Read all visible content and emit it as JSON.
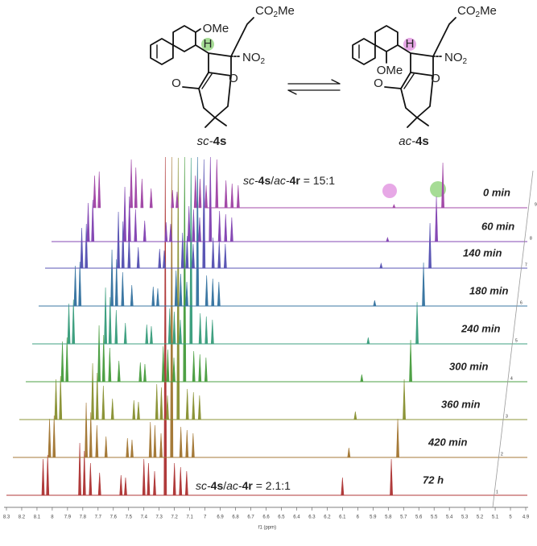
{
  "scheme": {
    "left": {
      "ome": "OMe",
      "h": "H",
      "no2": "NO",
      "no2_sub": "2",
      "co2me_a": "CO",
      "co2me_sub": "2",
      "co2me_b": "Me",
      "ring_o": "O",
      "keto_o": "O",
      "label_prefix": "sc-",
      "label_num": "4s"
    },
    "right": {
      "ome": "OMe",
      "h": "H",
      "no2": "NO",
      "no2_sub": "2",
      "co2me_a": "CO",
      "co2me_sub": "2",
      "co2me_b": "Me",
      "ring_o": "O",
      "keto_o": "O",
      "label_prefix": "ac-",
      "label_num": "4s"
    }
  },
  "annotations": {
    "top_ratio": [
      "sc-",
      "4s",
      "/",
      "ac-",
      "4r",
      " = 15:1"
    ],
    "bottom_ratio": [
      "sc-",
      "4s",
      "/",
      "ac-",
      "4r",
      " = 2.1:1"
    ]
  },
  "chart_data": {
    "type": "nmr-stack",
    "xlabel": "f1 (ppm)",
    "xlim": [
      8.3,
      4.9
    ],
    "xticks": [
      8.3,
      8.2,
      8.1,
      8,
      7.9,
      7.8,
      7.7,
      7.6,
      7.5,
      7.4,
      7.3,
      7.2,
      7.1,
      7,
      6.9,
      6.8,
      6.7,
      6.6,
      6.5,
      6.4,
      6.3,
      6.2,
      6.1,
      6,
      5.9,
      5.8,
      5.7,
      5.6,
      5.5,
      5.4,
      5.3,
      5.2,
      5.1,
      5,
      4.9
    ],
    "traces": [
      {
        "name": "72 h",
        "index": 1,
        "color": "#b03a3a",
        "ppm": [
          8.06,
          8.03,
          7.82,
          7.79,
          7.75,
          7.69,
          7.55,
          7.52,
          7.4,
          7.37,
          7.33,
          7.26,
          7.2,
          7.16,
          7.12,
          6.1,
          5.78
        ],
        "heights": [
          45,
          50,
          65,
          55,
          40,
          28,
          25,
          22,
          45,
          40,
          30,
          420,
          40,
          35,
          30,
          22,
          45
        ]
      },
      {
        "name": "420 min",
        "index": 2,
        "color": "#a57a38",
        "ppm": [
          8.06,
          8.03,
          7.82,
          7.79,
          7.75,
          7.69,
          7.55,
          7.52,
          7.4,
          7.37,
          7.33,
          7.26,
          7.2,
          7.16,
          7.12,
          6.1,
          5.78
        ],
        "heights": [
          48,
          52,
          68,
          56,
          40,
          26,
          24,
          22,
          44,
          40,
          30,
          373,
          38,
          34,
          30,
          12,
          48
        ]
      },
      {
        "name": "360 min",
        "index": 3,
        "color": "#8c9438",
        "ppm": [
          8.06,
          8.03,
          7.82,
          7.79,
          7.75,
          7.69,
          7.55,
          7.52,
          7.4,
          7.37,
          7.33,
          7.26,
          7.2,
          7.16,
          7.12,
          6.1,
          5.78
        ],
        "heights": [
          50,
          54,
          70,
          58,
          42,
          26,
          24,
          22,
          44,
          40,
          30,
          325,
          38,
          34,
          30,
          10,
          50
        ]
      },
      {
        "name": "300 min",
        "index": 4,
        "color": "#4ea045",
        "ppm": [
          8.06,
          8.03,
          7.82,
          7.79,
          7.75,
          7.69,
          7.55,
          7.52,
          7.4,
          7.37,
          7.33,
          7.26,
          7.2,
          7.16,
          7.12,
          6.1,
          5.78
        ],
        "heights": [
          50,
          55,
          70,
          58,
          42,
          26,
          24,
          22,
          44,
          40,
          30,
          279,
          38,
          34,
          30,
          9,
          52
        ]
      },
      {
        "name": "240 min",
        "index": 5,
        "color": "#3fa080",
        "ppm": [
          8.06,
          8.03,
          7.82,
          7.79,
          7.75,
          7.69,
          7.55,
          7.52,
          7.4,
          7.37,
          7.33,
          7.26,
          7.2,
          7.16,
          7.12,
          6.1,
          5.78
        ],
        "heights": [
          50,
          55,
          70,
          58,
          42,
          26,
          24,
          22,
          44,
          40,
          30,
          231,
          38,
          34,
          30,
          8,
          52
        ]
      },
      {
        "name": "180 min",
        "index": 6,
        "color": "#3b77a3",
        "ppm": [
          8.06,
          8.03,
          7.82,
          7.79,
          7.75,
          7.69,
          7.55,
          7.52,
          7.4,
          7.37,
          7.33,
          7.26,
          7.2,
          7.16,
          7.12,
          6.1,
          5.78
        ],
        "heights": [
          50,
          55,
          70,
          58,
          42,
          26,
          24,
          22,
          44,
          40,
          30,
          185,
          38,
          34,
          30,
          7,
          54
        ]
      },
      {
        "name": "140 min",
        "index": 7,
        "color": "#5a56b4",
        "ppm": [
          8.06,
          8.03,
          7.82,
          7.79,
          7.75,
          7.69,
          7.55,
          7.52,
          7.4,
          7.37,
          7.33,
          7.26,
          7.2,
          7.16,
          7.12,
          6.1,
          5.78
        ],
        "heights": [
          50,
          55,
          70,
          58,
          42,
          26,
          24,
          22,
          44,
          40,
          30,
          135,
          38,
          34,
          30,
          6,
          56
        ]
      },
      {
        "name": "60 min",
        "index": 8,
        "color": "#8548b4",
        "ppm": [
          8.06,
          8.03,
          7.82,
          7.79,
          7.75,
          7.69,
          7.55,
          7.52,
          7.4,
          7.37,
          7.33,
          7.26,
          7.2,
          7.16,
          7.12,
          6.1,
          5.78
        ],
        "heights": [
          48,
          52,
          68,
          56,
          40,
          26,
          24,
          22,
          44,
          40,
          30,
          105,
          38,
          34,
          30,
          5,
          56
        ]
      },
      {
        "name": "0 min",
        "index": 9,
        "color": "#a34aa8",
        "ppm": [
          8.06,
          8.03,
          7.82,
          7.79,
          7.75,
          7.69,
          7.55,
          7.52,
          7.4,
          7.37,
          7.33,
          7.26,
          7.2,
          7.16,
          7.12,
          6.1,
          5.78
        ],
        "heights": [
          40,
          45,
          60,
          50,
          36,
          24,
          22,
          20,
          40,
          36,
          28,
          60,
          34,
          30,
          28,
          4,
          56
        ]
      }
    ]
  }
}
